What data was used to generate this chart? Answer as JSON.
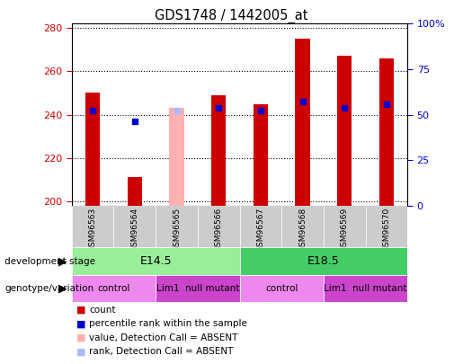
{
  "title": "GDS1748 / 1442005_at",
  "samples": [
    "GSM96563",
    "GSM96564",
    "GSM96565",
    "GSM96566",
    "GSM96567",
    "GSM96568",
    "GSM96569",
    "GSM96570"
  ],
  "count_values": [
    250,
    211,
    null,
    249,
    245,
    275,
    267,
    266
  ],
  "absent_value": 243,
  "absent_bar_color": "#ffb0b0",
  "percentile_values": [
    242,
    237,
    null,
    243,
    242,
    246,
    243,
    245
  ],
  "absent_rank_value": 242,
  "ylim_left": [
    198,
    282
  ],
  "ylim_right": [
    0,
    100
  ],
  "yticks_left": [
    200,
    220,
    240,
    260,
    280
  ],
  "yticks_right": [
    0,
    25,
    50,
    75,
    100
  ],
  "ytick_labels_right": [
    "0",
    "25",
    "50",
    "75",
    "100%"
  ],
  "plot_bg_color": "#ffffff",
  "bar_color": "#cc0000",
  "percentile_color": "#0000cc",
  "bar_width": 0.35,
  "development_stage_label": "development stage",
  "genotype_label": "genotype/variation",
  "dev_stage_groups": [
    {
      "label": "E14.5",
      "start": 0,
      "end": 3,
      "color": "#99ee99"
    },
    {
      "label": "E18.5",
      "start": 4,
      "end": 7,
      "color": "#44cc66"
    }
  ],
  "genotype_groups": [
    {
      "label": "control",
      "start": 0,
      "end": 1,
      "color": "#ee88ee"
    },
    {
      "label": "Lim1  null mutant",
      "start": 2,
      "end": 3,
      "color": "#cc44cc"
    },
    {
      "label": "control",
      "start": 4,
      "end": 5,
      "color": "#ee88ee"
    },
    {
      "label": "Lim1  null mutant",
      "start": 6,
      "end": 7,
      "color": "#cc44cc"
    }
  ],
  "legend_items": [
    {
      "label": "count",
      "color": "#cc0000"
    },
    {
      "label": "percentile rank within the sample",
      "color": "#0000cc"
    },
    {
      "label": "value, Detection Call = ABSENT",
      "color": "#ffb0b0"
    },
    {
      "label": "rank, Detection Call = ABSENT",
      "color": "#aabbff"
    }
  ],
  "tick_color_left": "#cc0000",
  "tick_color_right": "#0000cc",
  "sample_bg_color": "#cccccc",
  "grid_style": "dotted"
}
